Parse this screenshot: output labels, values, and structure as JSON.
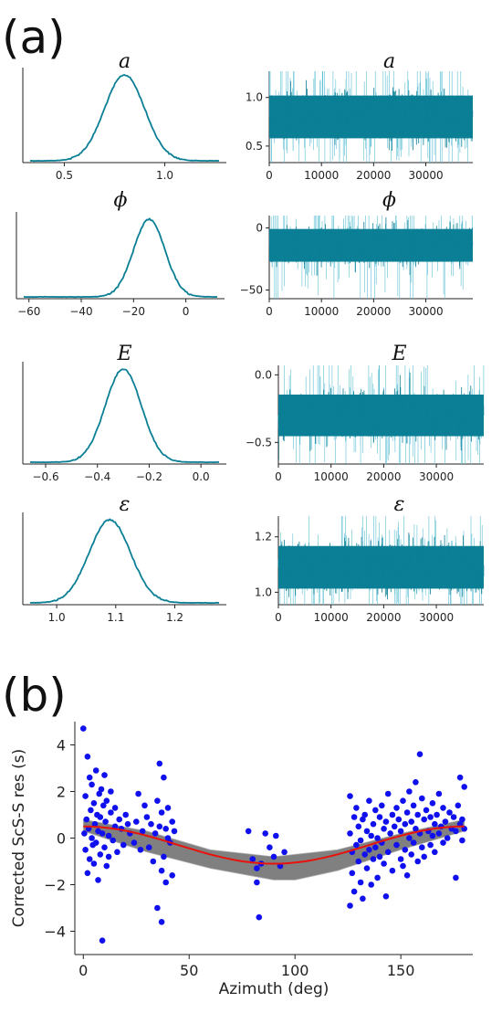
{
  "panel_labels": {
    "a": "(a)",
    "b": "(b)"
  },
  "colors": {
    "trace": "#0b7f95",
    "trace_light": "#5fc0d4",
    "points": "#1010ee",
    "fit": "#e8120c",
    "ensemble": "#808080"
  },
  "chart_data": [
    {
      "type": "line",
      "title": "a",
      "role": "posterior-density",
      "xlim": [
        0.33,
        1.27
      ],
      "xticks": [
        0.5,
        1.0
      ],
      "xtick_labels": [
        "0.5",
        "1.0"
      ],
      "distribution": {
        "mean": 0.8,
        "sd": 0.1
      }
    },
    {
      "type": "line",
      "title": "a",
      "role": "trace",
      "xlim": [
        0,
        39000
      ],
      "xticks": [
        0,
        10000,
        20000,
        30000
      ],
      "xtick_labels": [
        "0",
        "10000",
        "20000",
        "30000"
      ],
      "ylim": [
        0.33,
        1.27
      ],
      "yticks": [
        0.5,
        1.0
      ],
      "ytick_labels": [
        "0.5",
        "1.0"
      ],
      "distribution": {
        "mean": 0.8,
        "sd": 0.1
      }
    },
    {
      "type": "line",
      "title": "ϕ",
      "role": "posterior-density",
      "xlim": [
        -62,
        12
      ],
      "xticks": [
        -60,
        -40,
        -20,
        0
      ],
      "xtick_labels": [
        "−60",
        "−40",
        "−20",
        "0"
      ],
      "distribution": {
        "mean": -14,
        "sd": 6
      }
    },
    {
      "type": "line",
      "title": "ϕ",
      "role": "trace",
      "xlim": [
        0,
        39000
      ],
      "xticks": [
        0,
        10000,
        20000,
        30000
      ],
      "xtick_labels": [
        "0",
        "10000",
        "20000",
        "30000"
      ],
      "ylim": [
        -57,
        10
      ],
      "yticks": [
        0,
        -50
      ],
      "ytick_labels": [
        "0",
        "−50"
      ],
      "distribution": {
        "mean": -14,
        "sd": 6
      }
    },
    {
      "type": "line",
      "title": "E",
      "role": "posterior-density",
      "xlim": [
        -0.66,
        0.07
      ],
      "xticks": [
        -0.6,
        -0.4,
        -0.2,
        0.0
      ],
      "xtick_labels": [
        "−0.6",
        "−0.4",
        "−0.2",
        "0.0"
      ],
      "distribution": {
        "mean": -0.3,
        "sd": 0.07
      }
    },
    {
      "type": "line",
      "title": "E",
      "role": "trace",
      "xlim": [
        0,
        39000
      ],
      "xticks": [
        0,
        10000,
        20000,
        30000
      ],
      "xtick_labels": [
        "0",
        "10000",
        "20000",
        "30000"
      ],
      "ylim": [
        -0.66,
        0.07
      ],
      "yticks": [
        0.0,
        -0.5
      ],
      "ytick_labels": [
        "0.0",
        "−0.5"
      ],
      "distribution": {
        "mean": -0.3,
        "sd": 0.07
      }
    },
    {
      "type": "line",
      "title": "ε",
      "role": "posterior-density",
      "xlim": [
        0.955,
        1.275
      ],
      "xticks": [
        1.0,
        1.1,
        1.2
      ],
      "xtick_labels": [
        "1.0",
        "1.1",
        "1.2"
      ],
      "distribution": {
        "mean": 1.09,
        "sd": 0.035
      }
    },
    {
      "type": "line",
      "title": "ε",
      "role": "trace",
      "xlim": [
        0,
        39000
      ],
      "xticks": [
        0,
        10000,
        20000,
        30000
      ],
      "xtick_labels": [
        "0",
        "10000",
        "20000",
        "30000"
      ],
      "ylim": [
        0.955,
        1.275
      ],
      "yticks": [
        1.2,
        1.0
      ],
      "ytick_labels": [
        "1.2",
        "1.0"
      ],
      "distribution": {
        "mean": 1.09,
        "sd": 0.035
      }
    },
    {
      "type": "scatter",
      "title": "",
      "xlabel": "Azimuth (deg)",
      "ylabel": "Corrected ScS-S res (s)",
      "xlim": [
        -4,
        184
      ],
      "ylim": [
        -5,
        5
      ],
      "xticks": [
        0,
        50,
        100,
        150
      ],
      "xtick_labels": [
        "0",
        "50",
        "100",
        "150"
      ],
      "yticks": [
        4,
        2,
        0,
        -2,
        -4
      ],
      "ytick_labels": [
        "4",
        "2",
        "0",
        "−2",
        "−4"
      ],
      "fit_curve": {
        "model": "y = 0.8·cos(2·(x − 180)°) − 0.3",
        "best_fit_range": [
          0,
          180
        ]
      },
      "ensemble_band": {
        "x_samples": [
          0,
          30,
          60,
          90,
          100,
          120,
          150,
          180
        ],
        "lower": [
          0.3,
          -0.6,
          -1.3,
          -1.8,
          -1.8,
          -1.4,
          -0.5,
          0.3
        ],
        "upper": [
          0.8,
          0.3,
          -0.5,
          -0.8,
          -0.7,
          -0.5,
          0.2,
          0.8
        ]
      },
      "points": [
        [
          0,
          4.7
        ],
        [
          0.5,
          0.2
        ],
        [
          1,
          1.8
        ],
        [
          1,
          -0.5
        ],
        [
          1.5,
          0.8
        ],
        [
          2,
          3.5
        ],
        [
          2,
          -1.5
        ],
        [
          2.5,
          0.4
        ],
        [
          3,
          2.6
        ],
        [
          3,
          -0.9
        ],
        [
          3.5,
          1.2
        ],
        [
          4,
          0.0
        ],
        [
          4,
          2.3
        ],
        [
          4.5,
          -0.3
        ],
        [
          5,
          1.5
        ],
        [
          5,
          -1.1
        ],
        [
          5.5,
          0.6
        ],
        [
          6,
          2.9
        ],
        [
          6,
          -0.2
        ],
        [
          6.5,
          1.0
        ],
        [
          7,
          -1.8
        ],
        [
          7,
          0.3
        ],
        [
          7.5,
          1.9
        ],
        [
          8,
          -0.7
        ],
        [
          8,
          0.9
        ],
        [
          8.5,
          2.1
        ],
        [
          9,
          -4.4
        ],
        [
          9,
          0.2
        ],
        [
          9.5,
          1.4
        ],
        [
          10,
          -0.4
        ],
        [
          10,
          2.7
        ],
        [
          10.5,
          0.7
        ],
        [
          11,
          -1.2
        ],
        [
          11,
          1.6
        ],
        [
          12,
          0.1
        ],
        [
          12,
          -0.8
        ],
        [
          13,
          1.1
        ],
        [
          13,
          2.0
        ],
        [
          14,
          -0.1
        ],
        [
          15,
          0.5
        ],
        [
          15,
          1.3
        ],
        [
          16,
          -0.6
        ],
        [
          17,
          0.8
        ],
        [
          18,
          0.4
        ],
        [
          19,
          -0.3
        ],
        [
          20,
          1.0
        ],
        [
          21,
          0.6
        ],
        [
          22,
          0.2
        ],
        [
          24,
          -0.2
        ],
        [
          25,
          0.7
        ],
        [
          26,
          1.9
        ],
        [
          27,
          -0.5
        ],
        [
          28,
          0.3
        ],
        [
          29,
          1.4
        ],
        [
          30,
          0.9
        ],
        [
          31,
          -0.4
        ],
        [
          32,
          0.6
        ],
        [
          33,
          -1.0
        ],
        [
          34,
          0.2
        ],
        [
          35,
          1.6
        ],
        [
          35,
          -3.0
        ],
        [
          36,
          0.5
        ],
        [
          36,
          3.2
        ],
        [
          37,
          -1.4
        ],
        [
          37,
          1.1
        ],
        [
          37,
          -3.6
        ],
        [
          38,
          2.6
        ],
        [
          38,
          -0.8
        ],
        [
          39,
          0.4
        ],
        [
          39,
          -1.9
        ],
        [
          40,
          0.0
        ],
        [
          40,
          1.3
        ],
        [
          41,
          -0.2
        ],
        [
          42,
          0.7
        ],
        [
          42,
          -1.6
        ],
        [
          43,
          0.3
        ],
        [
          78,
          0.3
        ],
        [
          80,
          -0.9
        ],
        [
          82,
          -1.3
        ],
        [
          82,
          -1.9
        ],
        [
          83,
          -3.4
        ],
        [
          84,
          -1.1
        ],
        [
          86,
          0.2
        ],
        [
          88,
          -0.4
        ],
        [
          90,
          -0.8
        ],
        [
          91,
          0.1
        ],
        [
          93,
          -1.2
        ],
        [
          95,
          -0.6
        ],
        [
          126,
          0.2
        ],
        [
          126,
          -2.9
        ],
        [
          126,
          1.8
        ],
        [
          127,
          -0.6
        ],
        [
          127,
          -1.5
        ],
        [
          128,
          0.9
        ],
        [
          128,
          -2.3
        ],
        [
          129,
          -0.3
        ],
        [
          129,
          1.3
        ],
        [
          130,
          -1.0
        ],
        [
          130,
          0.5
        ],
        [
          131,
          -1.9
        ],
        [
          131,
          -0.1
        ],
        [
          132,
          0.8
        ],
        [
          132,
          -2.6
        ],
        [
          133,
          -0.7
        ],
        [
          133,
          1.0
        ],
        [
          134,
          0.3
        ],
        [
          134,
          -1.3
        ],
        [
          135,
          -0.5
        ],
        [
          135,
          1.6
        ],
        [
          136,
          0.1
        ],
        [
          136,
          -2.0
        ],
        [
          137,
          -0.9
        ],
        [
          137,
          0.6
        ],
        [
          138,
          1.2
        ],
        [
          138,
          -0.4
        ],
        [
          139,
          0.0
        ],
        [
          139,
          -1.7
        ],
        [
          140,
          0.9
        ],
        [
          140,
          -0.8
        ],
        [
          141,
          -0.2
        ],
        [
          141,
          1.4
        ],
        [
          142,
          0.4
        ],
        [
          142,
          -1.1
        ],
        [
          143,
          -2.5
        ],
        [
          143,
          0.7
        ],
        [
          144,
          -0.6
        ],
        [
          144,
          1.9
        ],
        [
          145,
          0.2
        ],
        [
          146,
          -1.4
        ],
        [
          146,
          1.0
        ],
        [
          147,
          0.5
        ],
        [
          148,
          -0.3
        ],
        [
          148,
          1.3
        ],
        [
          149,
          0.8
        ],
        [
          150,
          -0.9
        ],
        [
          150,
          0.3
        ],
        [
          151,
          1.6
        ],
        [
          151,
          -1.2
        ],
        [
          152,
          0.6
        ],
        [
          152,
          -0.5
        ],
        [
          153,
          1.1
        ],
        [
          153,
          -1.6
        ],
        [
          154,
          0.0
        ],
        [
          154,
          2.0
        ],
        [
          155,
          0.7
        ],
        [
          155,
          -0.7
        ],
        [
          156,
          1.4
        ],
        [
          156,
          -0.2
        ],
        [
          157,
          0.4
        ],
        [
          157,
          2.4
        ],
        [
          158,
          -1.0
        ],
        [
          158,
          1.0
        ],
        [
          159,
          3.6
        ],
        [
          159,
          0.2
        ],
        [
          160,
          -0.4
        ],
        [
          160,
          1.7
        ],
        [
          161,
          0.8
        ],
        [
          161,
          -0.8
        ],
        [
          162,
          1.2
        ],
        [
          163,
          0.3
        ],
        [
          164,
          -0.3
        ],
        [
          164,
          0.9
        ],
        [
          165,
          1.5
        ],
        [
          165,
          0.1
        ],
        [
          166,
          0.6
        ],
        [
          166,
          -0.6
        ],
        [
          167,
          1.0
        ],
        [
          168,
          0.2
        ],
        [
          168,
          1.9
        ],
        [
          169,
          0.5
        ],
        [
          170,
          -0.2
        ],
        [
          170,
          1.3
        ],
        [
          171,
          0.7
        ],
        [
          172,
          0.0
        ],
        [
          173,
          1.1
        ],
        [
          174,
          0.4
        ],
        [
          175,
          0.9
        ],
        [
          176,
          -1.7
        ],
        [
          176,
          0.3
        ],
        [
          177,
          1.4
        ],
        [
          178,
          0.6
        ],
        [
          178,
          2.6
        ],
        [
          179,
          -0.1
        ],
        [
          179,
          0.8
        ],
        [
          180,
          2.2
        ],
        [
          180,
          0.4
        ]
      ]
    }
  ]
}
